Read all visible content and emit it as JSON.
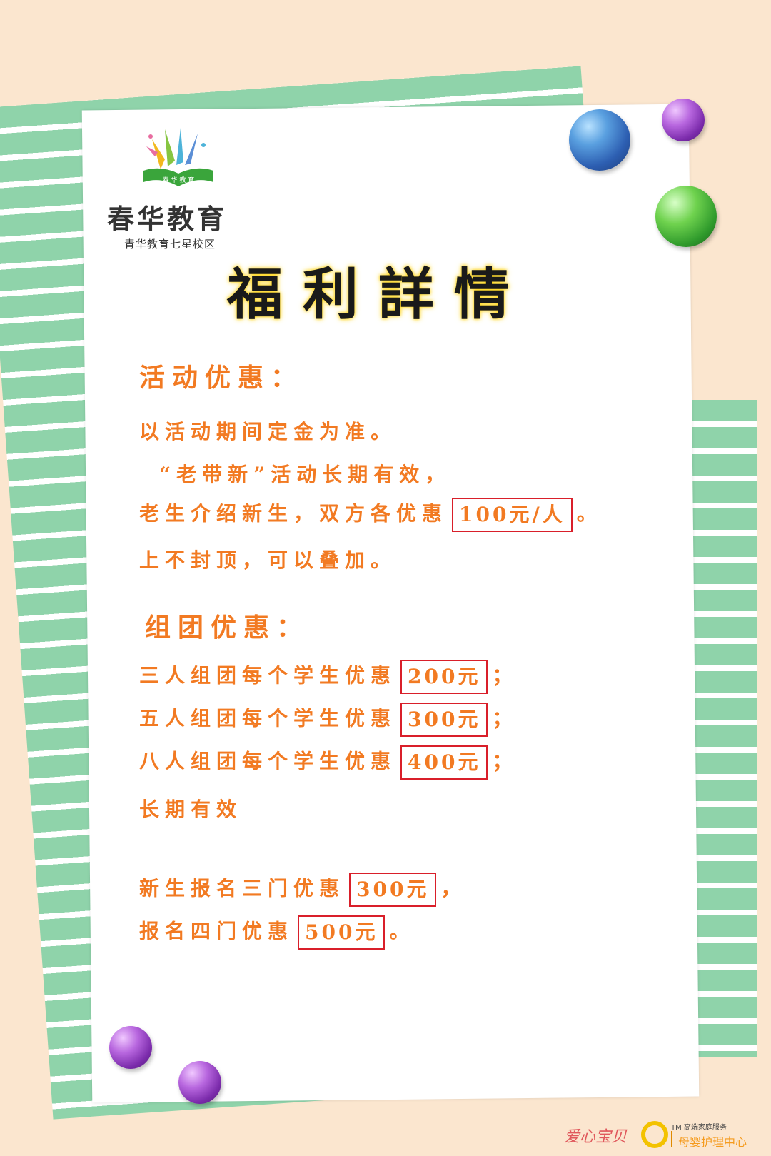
{
  "logo": {
    "name": "春华教育",
    "sub": "青华教育七星校区",
    "icon": "book-rays-icon",
    "book_text": "春 华 教 育"
  },
  "title": "福利詳情",
  "section1": {
    "heading": "活动优惠：",
    "line1": "以活动期间定金为准。",
    "line2": "“老带新”活动长期有效，",
    "line3_prefix": "老生介绍新生，双方各优惠",
    "line3_box": "100元/人",
    "line3_suffix": "。",
    "line4": "上不封顶，可以叠加。"
  },
  "section2": {
    "heading": "组团优惠：",
    "rows": [
      {
        "prefix": "三人组团每个学生优惠",
        "box": "200元",
        "suffix": "；"
      },
      {
        "prefix": "五人组团每个学生优惠",
        "box": "300元",
        "suffix": "；"
      },
      {
        "prefix": "八人组团每个学生优惠",
        "box": "400元",
        "suffix": "；"
      }
    ],
    "note": "长期有效"
  },
  "section3": {
    "row1_prefix": "新生报名三门优惠",
    "row1_box": "300元",
    "row1_suffix": "，",
    "row2_prefix": "报名四门优惠",
    "row2_box": "500元",
    "row2_suffix": "。"
  },
  "footer": {
    "brand": "爱心宝贝",
    "tm": "TM 高端家庭服务",
    "sub": "母婴护理中心"
  },
  "colors": {
    "accent": "#f27a22",
    "box_border": "#d91f2a",
    "stripe": "#8fd3aa",
    "background": "#fbe6cf"
  }
}
